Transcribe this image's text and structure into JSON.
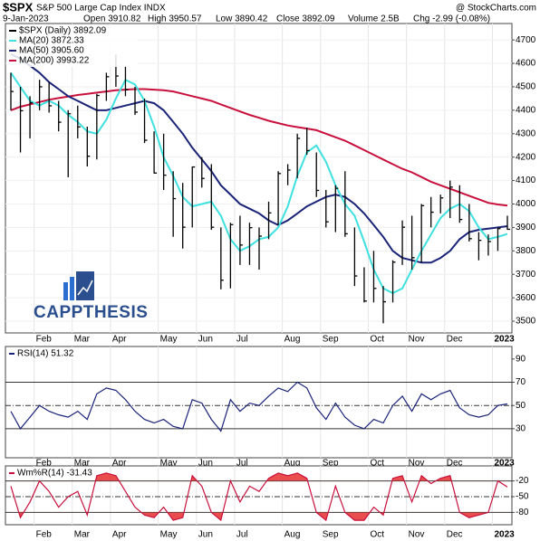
{
  "header": {
    "symbol": "$SPX",
    "name": "S&P 500 Large Cap Index INDX",
    "watermark": "@ StockCharts.com",
    "date": "9-Jan-2023",
    "quote": [
      "Open 3910.82",
      "High 3950.57",
      "Low 3890.42",
      "Close 3892.09",
      "Volume 2.5B",
      "Chg -2.99 (-0.08%)"
    ]
  },
  "chart_data": [
    {
      "type": "ohlc",
      "name": "$SPX (Daily) 3892.09",
      "annotation": "CAPPTHESIS",
      "color": "#000000",
      "categories": [
        null,
        null,
        null,
        "Feb",
        null,
        null,
        null,
        "Mar",
        null,
        null,
        null,
        "Apr",
        null,
        null,
        null,
        null,
        "May",
        null,
        null,
        null,
        "Jun",
        null,
        null,
        null,
        "Jul",
        null,
        null,
        null,
        null,
        "Aug",
        null,
        null,
        null,
        "Sep",
        null,
        null,
        null,
        null,
        "Oct",
        null,
        null,
        null,
        "Nov",
        null,
        null,
        null,
        "Dec",
        null,
        null,
        null,
        null,
        "2023",
        null
      ],
      "high": [
        4560,
        4500,
        4460,
        4530,
        4520,
        4440,
        4400,
        4420,
        4330,
        4470,
        4560,
        4637,
        4590,
        4500,
        4450,
        4310,
        4300,
        4140,
        4090,
        4160,
        4200,
        4170,
        3900,
        3920,
        3950,
        3920,
        3900,
        4010,
        4140,
        4170,
        4300,
        4325,
        4220,
        4060,
        4080,
        4140,
        3900,
        3730,
        3800,
        3650,
        3760,
        3930,
        3950,
        4000,
        4030,
        4040,
        4100,
        4080,
        4000,
        3880,
        3870,
        3900,
        3950
      ],
      "low": [
        4400,
        4220,
        4280,
        4400,
        4390,
        4310,
        4114,
        4280,
        4160,
        4190,
        4440,
        4500,
        4460,
        4380,
        4260,
        4130,
        4060,
        3860,
        3810,
        3900,
        4070,
        3890,
        3636,
        3640,
        3740,
        3740,
        3720,
        3850,
        3910,
        4080,
        4110,
        4210,
        4030,
        3900,
        3880,
        3860,
        3650,
        3580,
        3580,
        3491,
        3580,
        3740,
        3720,
        3750,
        3900,
        3960,
        3940,
        3920,
        3840,
        3760,
        3780,
        3800,
        3890
      ],
      "close": [
        4480,
        4398,
        4432,
        4500,
        4419,
        4349,
        4385,
        4329,
        4204,
        4463,
        4543,
        4546,
        4488,
        4392,
        4272,
        4132,
        4123,
        4023,
        3901,
        4158,
        4109,
        3901,
        3675,
        3912,
        3825,
        3899,
        3863,
        3962,
        4130,
        4145,
        4280,
        4228,
        4058,
        3924,
        4067,
        3873,
        3693,
        3586,
        3640,
        3583,
        3752,
        3901,
        3771,
        3993,
        3965,
        4026,
        4072,
        3934,
        3852,
        3845,
        3840,
        3895,
        3892.09
      ],
      "series": [
        {
          "name": "MA(20) 3872.33",
          "color": "#3fe0e0",
          "values": [
            4560,
            4500,
            4440,
            4420,
            4440,
            4420,
            4380,
            4350,
            4310,
            4300,
            4360,
            4450,
            4530,
            4510,
            4440,
            4330,
            4200,
            4120,
            4030,
            3990,
            4000,
            4010,
            3950,
            3850,
            3800,
            3820,
            3850,
            3860,
            3900,
            3990,
            4120,
            4220,
            4250,
            4180,
            4080,
            4000,
            3950,
            3840,
            3720,
            3640,
            3620,
            3640,
            3720,
            3800,
            3870,
            3940,
            3980,
            4000,
            3970,
            3900,
            3850,
            3860,
            3872.33
          ]
        },
        {
          "name": "MA(50) 3905.60",
          "color": "#1a2378",
          "values": [
            4640,
            4620,
            4590,
            4560,
            4520,
            4490,
            4460,
            4440,
            4420,
            4400,
            4400,
            4410,
            4420,
            4430,
            4440,
            4430,
            4400,
            4350,
            4300,
            4240,
            4190,
            4140,
            4080,
            4040,
            4000,
            3980,
            3960,
            3930,
            3910,
            3930,
            3960,
            3990,
            4010,
            4030,
            4040,
            4030,
            4000,
            3960,
            3910,
            3860,
            3800,
            3770,
            3760,
            3750,
            3750,
            3770,
            3800,
            3850,
            3880,
            3890,
            3895,
            3900,
            3905.6
          ]
        },
        {
          "name": "MA(200) 3993.22",
          "color": "#c8103c",
          "values": [
            4400,
            4415,
            4425,
            4435,
            4445,
            4452,
            4458,
            4465,
            4470,
            4475,
            4480,
            4485,
            4488,
            4490,
            4490,
            4488,
            4485,
            4480,
            4470,
            4460,
            4450,
            4440,
            4425,
            4410,
            4395,
            4380,
            4368,
            4355,
            4345,
            4335,
            4328,
            4322,
            4315,
            4300,
            4285,
            4270,
            4250,
            4230,
            4210,
            4190,
            4170,
            4150,
            4135,
            4115,
            4095,
            4080,
            4065,
            4050,
            4035,
            4020,
            4005,
            3998,
            3993.22
          ]
        }
      ],
      "ylim": [
        3450,
        4770
      ],
      "yticks": [
        3500,
        3600,
        3700,
        3800,
        3900,
        4000,
        4100,
        4200,
        4300,
        4400,
        4500,
        4600,
        4700
      ]
    },
    {
      "type": "line",
      "name": "RSI(14) 51.32",
      "color": "#1a2378",
      "values": [
        45,
        30,
        40,
        50,
        45,
        42,
        40,
        45,
        38,
        60,
        65,
        63,
        55,
        45,
        38,
        35,
        38,
        32,
        30,
        55,
        52,
        38,
        28,
        55,
        45,
        52,
        50,
        58,
        65,
        62,
        70,
        65,
        48,
        38,
        52,
        40,
        33,
        30,
        38,
        35,
        50,
        58,
        45,
        60,
        55,
        60,
        63,
        48,
        42,
        40,
        42,
        50,
        51.32
      ],
      "ylim": [
        5,
        100
      ],
      "yticks": [
        90,
        70,
        50,
        30
      ]
    },
    {
      "type": "line",
      "name": "Wm%R(14) -31.43",
      "color": "#c8103c",
      "fill": "#e83a3a",
      "values": [
        -30,
        -90,
        -60,
        -20,
        -40,
        -70,
        -50,
        -40,
        -85,
        -10,
        -5,
        -10,
        -40,
        -70,
        -85,
        -90,
        -70,
        -95,
        -90,
        -10,
        -30,
        -80,
        -95,
        -20,
        -60,
        -30,
        -40,
        -15,
        -5,
        -10,
        -5,
        -15,
        -80,
        -95,
        -30,
        -80,
        -95,
        -95,
        -70,
        -85,
        -15,
        -10,
        -60,
        -10,
        -25,
        -15,
        -10,
        -80,
        -90,
        -85,
        -80,
        -20,
        -31.43
      ],
      "ylim": [
        -100,
        0
      ],
      "yticks": [
        -20,
        -50,
        -80
      ]
    }
  ]
}
